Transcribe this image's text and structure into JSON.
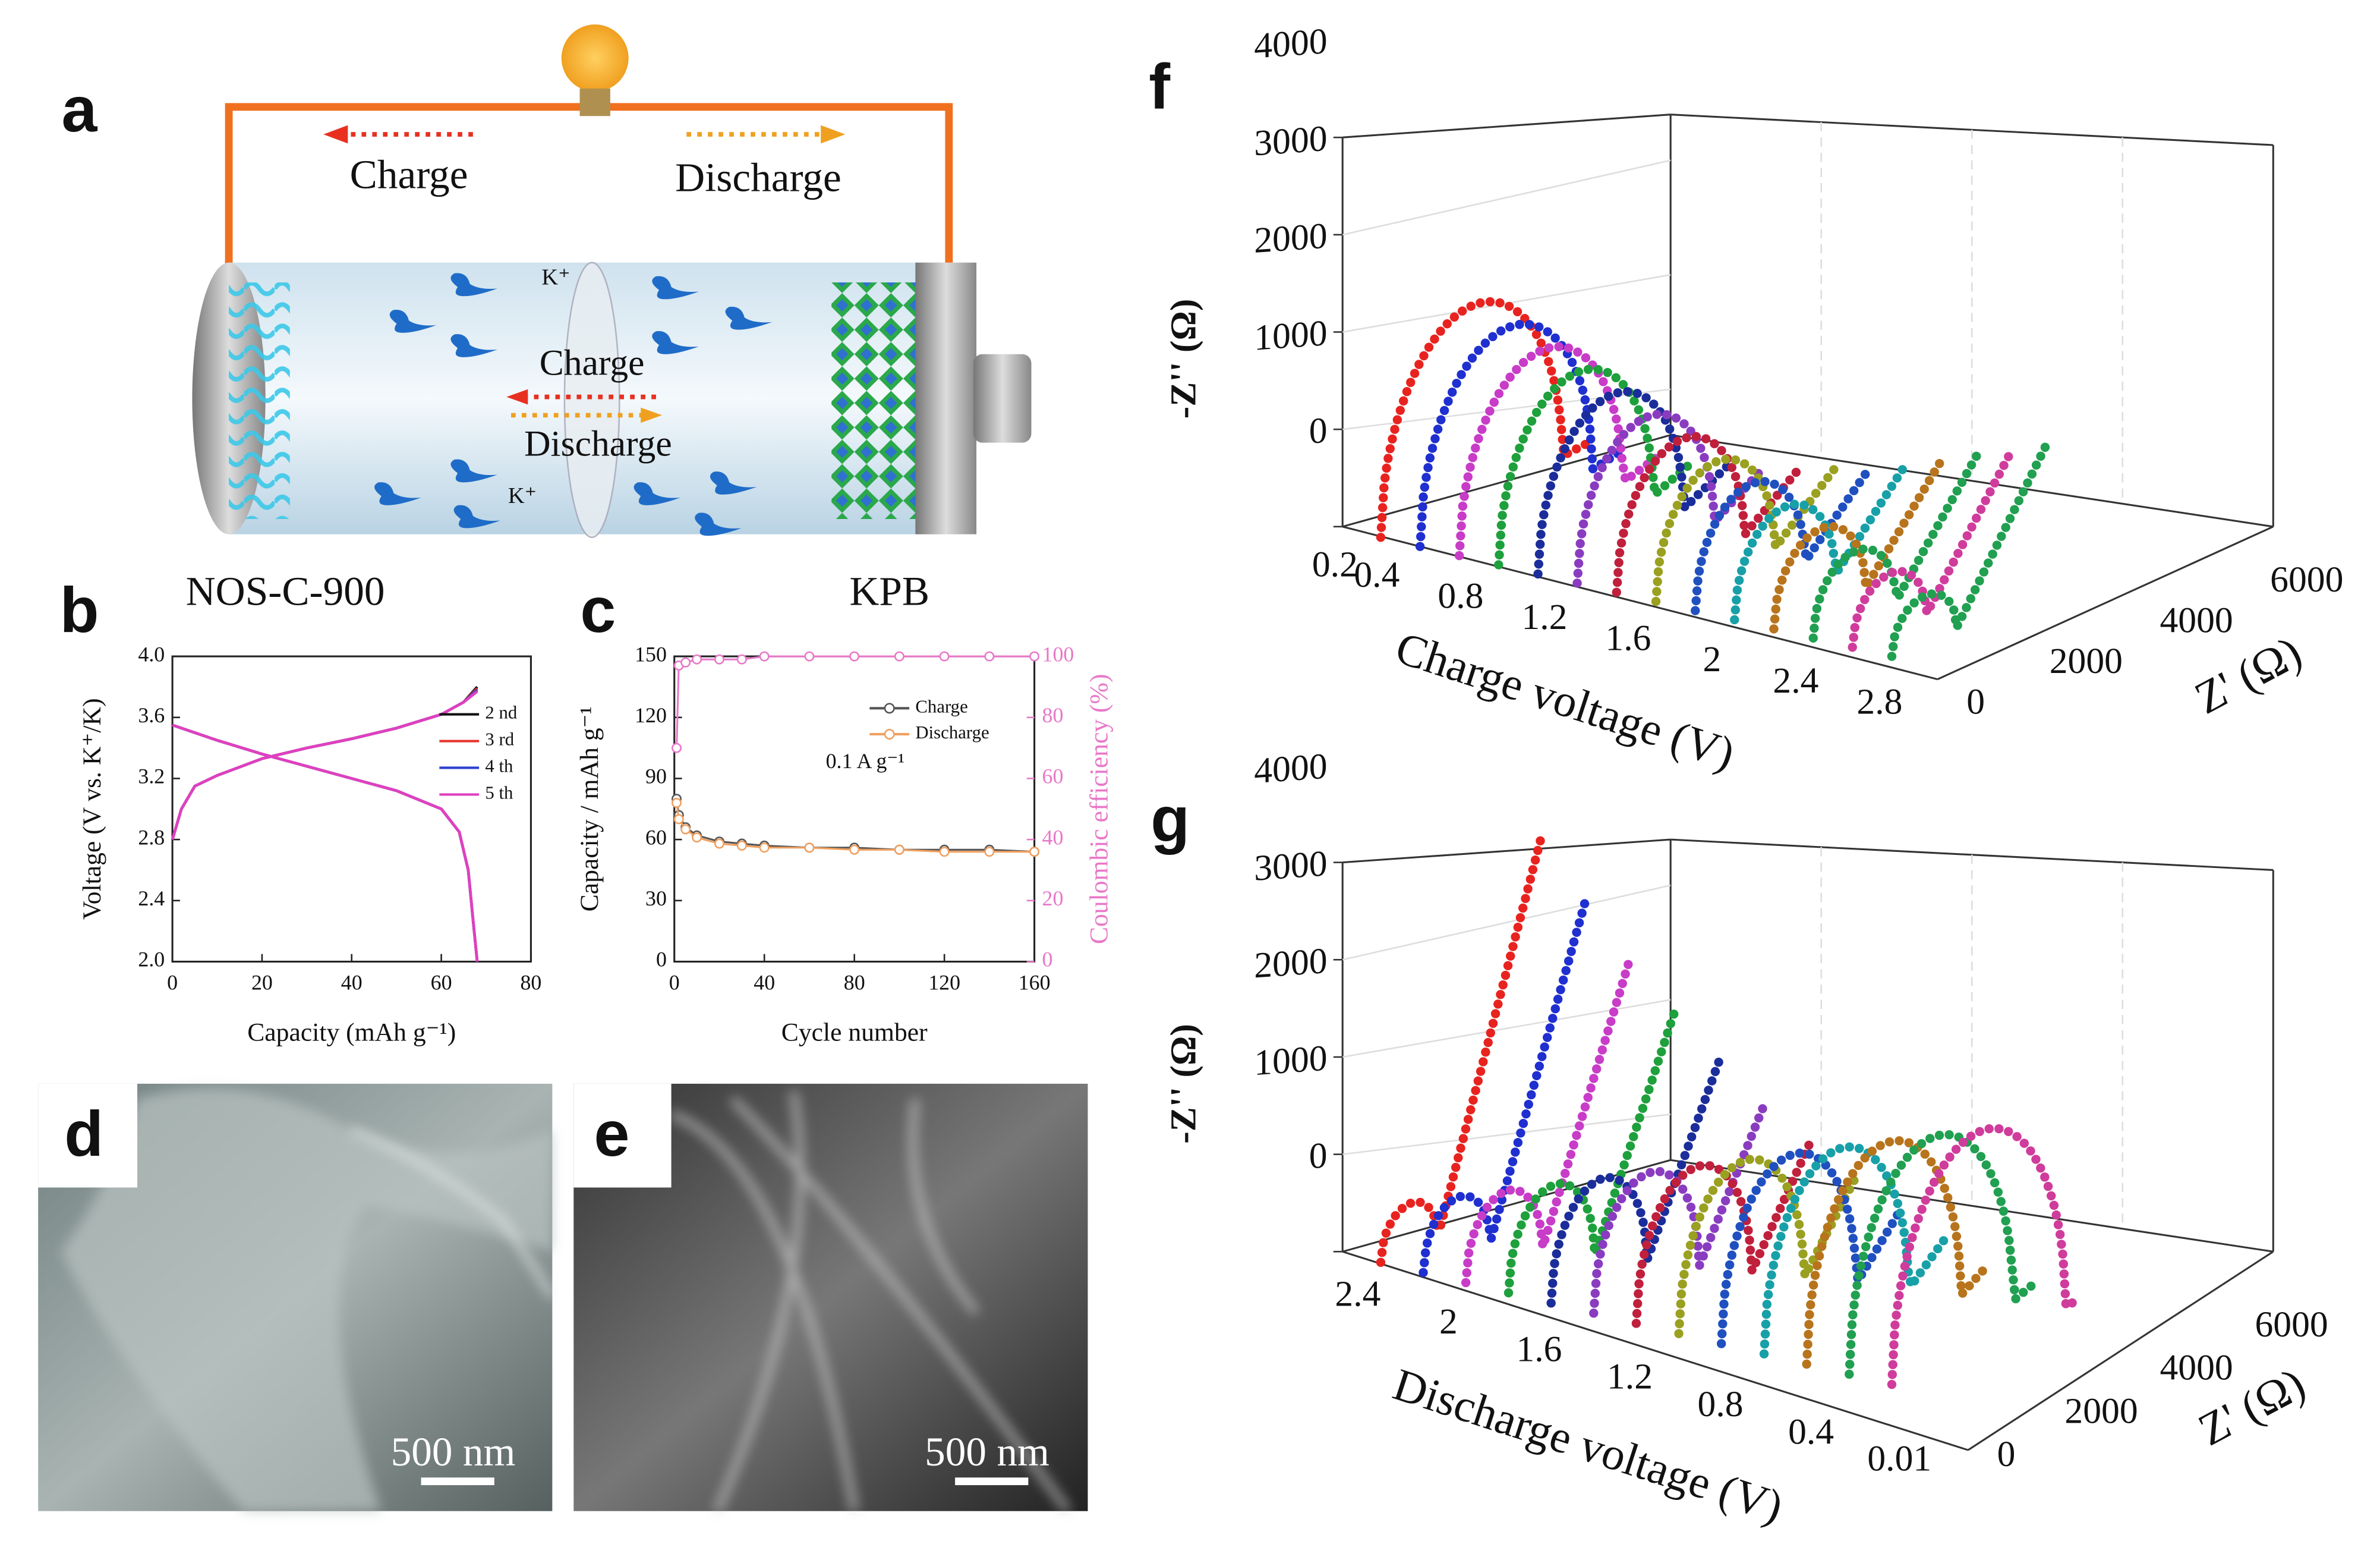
{
  "panels": {
    "a": {
      "label": "a",
      "charge_top": "Charge",
      "discharge_top": "Discharge",
      "ion_top": "K⁺",
      "charge_mid": "Charge",
      "discharge_mid": "Discharge",
      "ion_bottom": "K⁺"
    },
    "d": {
      "label": "d",
      "scale": "500 nm"
    },
    "e": {
      "label": "e",
      "scale": "500 nm"
    },
    "f": {
      "label": "f",
      "z_label": "-Z'' (Ω)",
      "zticks": [
        0,
        1000,
        2000,
        3000,
        4000
      ],
      "depth_label": "Z' (Ω)",
      "depth_ticks": [
        0,
        2000,
        4000,
        6000
      ],
      "x_label": "Charge voltage (V)",
      "xticks": [
        0.2,
        0.4,
        0.8,
        1.2,
        1.6,
        2,
        2.4,
        2.8
      ]
    },
    "g": {
      "label": "g",
      "z_label": "-Z'' (Ω)",
      "zticks": [
        0,
        1000,
        2000,
        3000,
        4000
      ],
      "depth_label": "Z' (Ω)",
      "depth_ticks": [
        0,
        2000,
        4000,
        6000
      ],
      "x_label": "Discharge voltage (V)",
      "xticks": [
        2.4,
        2,
        1.6,
        1.2,
        0.8,
        0.4,
        0.01
      ]
    }
  },
  "chart_data": [
    {
      "type": "line",
      "panel_label": "b",
      "title": "NOS-C-900",
      "x_label": "Capacity (mAh g⁻¹)",
      "y_label": "Voltage (V vs. K⁺/K)",
      "x": [
        0,
        2,
        5,
        10,
        20,
        30,
        40,
        50,
        60,
        65,
        68,
        null,
        0,
        5,
        10,
        20,
        30,
        40,
        50,
        60,
        64,
        66,
        67,
        68
      ],
      "series": [
        {
          "name": "2 nd",
          "color": "#111111",
          "values": [
            2.8,
            3.0,
            3.15,
            3.22,
            3.33,
            3.4,
            3.46,
            3.53,
            3.62,
            3.7,
            3.8,
            null,
            3.55,
            3.5,
            3.45,
            3.36,
            3.28,
            3.2,
            3.12,
            3.0,
            2.85,
            2.6,
            2.3,
            2.0
          ]
        },
        {
          "name": "3 rd",
          "color": "#e8342c",
          "values": [
            2.8,
            3.0,
            3.15,
            3.22,
            3.33,
            3.4,
            3.46,
            3.53,
            3.62,
            3.7,
            3.79,
            null,
            3.55,
            3.5,
            3.45,
            3.36,
            3.28,
            3.2,
            3.12,
            3.0,
            2.85,
            2.6,
            2.3,
            2.0
          ]
        },
        {
          "name": "4 th",
          "color": "#2b3fd0",
          "values": [
            2.8,
            3.0,
            3.15,
            3.22,
            3.33,
            3.4,
            3.46,
            3.53,
            3.62,
            3.7,
            3.78,
            null,
            3.55,
            3.5,
            3.45,
            3.36,
            3.28,
            3.2,
            3.12,
            3.0,
            2.85,
            2.6,
            2.3,
            2.0
          ]
        },
        {
          "name": "5 th",
          "color": "#e040c0",
          "values": [
            2.8,
            3.0,
            3.15,
            3.22,
            3.33,
            3.4,
            3.46,
            3.53,
            3.62,
            3.7,
            3.77,
            null,
            3.55,
            3.5,
            3.45,
            3.36,
            3.28,
            3.2,
            3.12,
            3.0,
            2.85,
            2.6,
            2.3,
            2.0
          ]
        }
      ],
      "xlim": [
        0,
        80
      ],
      "ylim": [
        2.0,
        4.0
      ],
      "xticks": [
        0,
        20,
        40,
        60,
        80
      ],
      "yticks": [
        {
          "value": 2,
          "label": "2.0"
        },
        2.4,
        2.8,
        3.2,
        3.6,
        {
          "value": 4,
          "label": "4.0"
        }
      ],
      "legend": "upper right"
    },
    {
      "type": "line",
      "panel_label": "c",
      "title": "KPB",
      "x_label": "Cycle number",
      "y_label": "Capacity / mAh g⁻¹",
      "y2_label": "Coulombic efficiency (%)",
      "annotation": "0.1 A g⁻¹",
      "x": [
        1,
        2,
        5,
        10,
        20,
        30,
        40,
        60,
        80,
        100,
        120,
        140,
        160
      ],
      "series": [
        {
          "name": "Charge",
          "color": "#555555",
          "values": [
            80,
            72,
            66,
            62,
            59,
            58,
            57,
            56,
            56,
            55,
            55,
            55,
            54
          ]
        },
        {
          "name": "Discharge",
          "color": "#f0a060",
          "values": [
            78,
            70,
            65,
            61,
            58,
            57,
            56,
            56,
            55,
            55,
            54,
            54,
            54
          ]
        },
        {
          "color": "#e878c8",
          "axis": "y2",
          "values": [
            70,
            97,
            98,
            99,
            99,
            99,
            100,
            100,
            100,
            100,
            100,
            100,
            100
          ]
        }
      ],
      "xlim": [
        0,
        160
      ],
      "ylim": [
        0,
        150
      ],
      "y2lim": [
        0,
        100
      ],
      "xticks": [
        0,
        40,
        80,
        120,
        160
      ],
      "yticks": [
        0,
        30,
        60,
        90,
        120,
        150
      ],
      "y2ticks": [
        0,
        20,
        40,
        60,
        80,
        100
      ],
      "legend": "upper right"
    }
  ]
}
